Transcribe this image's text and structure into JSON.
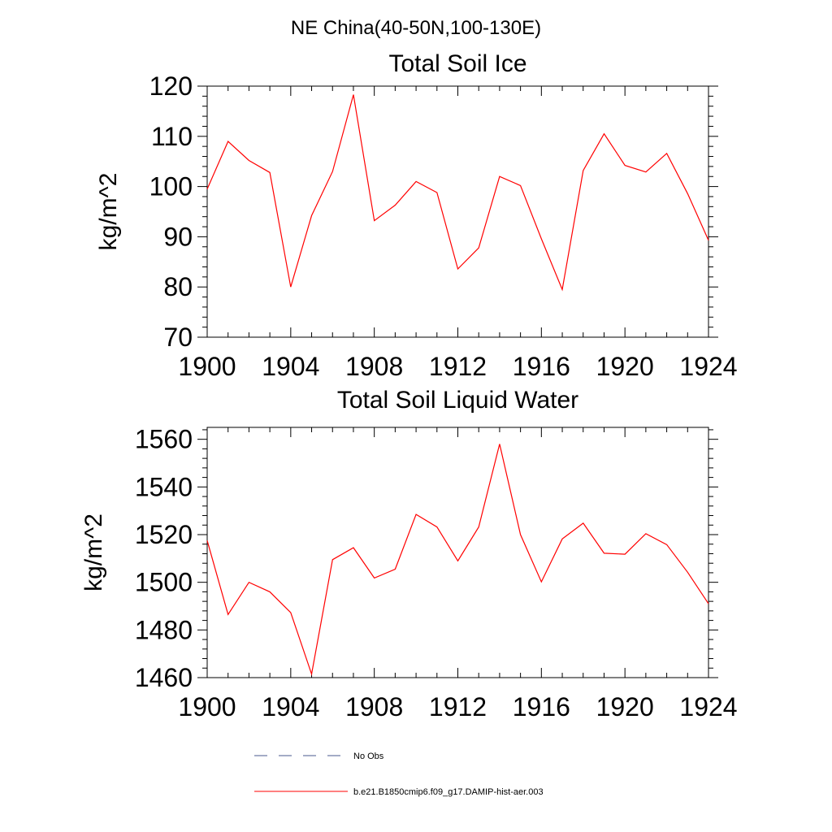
{
  "figure_title": "NE China(40-50N,100-130E)",
  "legend": {
    "items": [
      {
        "label": "No Obs",
        "color": "#4a5a8c",
        "style": "dashed"
      },
      {
        "label": "b.e21.B1850cmip6.f09_g17.DAMIP-hist-aer.003",
        "color": "#ff0000",
        "style": "solid"
      }
    ]
  },
  "chart_data": [
    {
      "type": "line",
      "title": "Total Soil Ice",
      "ylabel": "kg/m^2",
      "xlabel": "",
      "xlim": [
        1900,
        1924
      ],
      "ylim": [
        70,
        120
      ],
      "xticks": [
        1900,
        1904,
        1908,
        1912,
        1916,
        1920,
        1924
      ],
      "yticks": [
        70,
        80,
        90,
        100,
        110,
        120
      ],
      "grid": false,
      "series": [
        {
          "name": "b.e21.B1850cmip6.f09_g17.DAMIP-hist-aer.003",
          "color": "#ff0000",
          "x": [
            1900,
            1901,
            1902,
            1903,
            1904,
            1905,
            1906,
            1907,
            1908,
            1909,
            1910,
            1911,
            1912,
            1913,
            1914,
            1915,
            1916,
            1917,
            1918,
            1919,
            1920,
            1921,
            1922,
            1923,
            1924
          ],
          "y": [
            99.5,
            109,
            105.2,
            102.8,
            80,
            94.2,
            103,
            118.3,
            93.2,
            96.3,
            101,
            98.8,
            83.6,
            87.8,
            102,
            100.2,
            89.6,
            79.5,
            103.2,
            110.5,
            104.2,
            102.9,
            106.6,
            98.6,
            89.3
          ]
        }
      ]
    },
    {
      "type": "line",
      "title": "Total Soil Liquid Water",
      "ylabel": "kg/m^2",
      "xlabel": "",
      "xlim": [
        1900,
        1924
      ],
      "ylim": [
        1460,
        1565
      ],
      "xticks": [
        1900,
        1904,
        1908,
        1912,
        1916,
        1920,
        1924
      ],
      "yticks": [
        1460,
        1480,
        1500,
        1520,
        1540,
        1560
      ],
      "grid": false,
      "series": [
        {
          "name": "b.e21.B1850cmip6.f09_g17.DAMIP-hist-aer.003",
          "color": "#ff0000",
          "x": [
            1900,
            1901,
            1902,
            1903,
            1904,
            1905,
            1906,
            1907,
            1908,
            1909,
            1910,
            1911,
            1912,
            1913,
            1914,
            1915,
            1916,
            1917,
            1918,
            1919,
            1920,
            1921,
            1922,
            1923,
            1924
          ],
          "y": [
            1517.5,
            1486.5,
            1500,
            1496,
            1487.3,
            1461.5,
            1509.5,
            1514.5,
            1501.8,
            1505.5,
            1528.5,
            1523.2,
            1509,
            1523.2,
            1558,
            1520,
            1500.2,
            1518.2,
            1524.8,
            1512.2,
            1511.8,
            1520.4,
            1515.8,
            1504.2,
            1491
          ]
        }
      ]
    }
  ]
}
